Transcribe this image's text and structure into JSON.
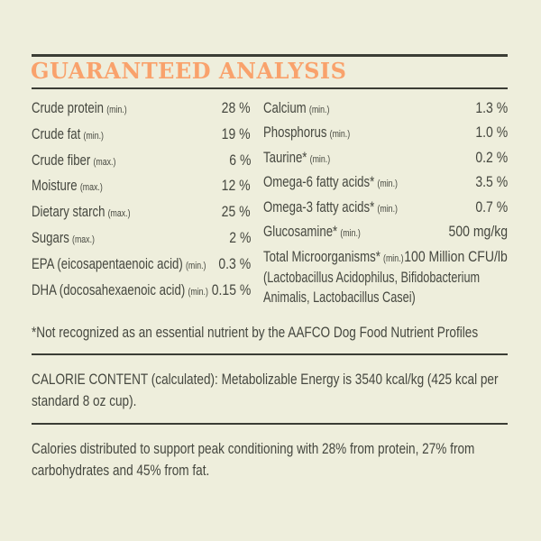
{
  "colors": {
    "background": "#EEEEDC",
    "accent_orange": "#F9A26C",
    "rule": "#3B3D35",
    "text": "#45473F"
  },
  "label": {
    "title": "GUARANTEED ANALYSIS",
    "footnote": "*Not recognized as an essential nutrient by the AAFCO Dog Food Nutrient Profiles",
    "calorie_content": "CALORIE CONTENT (calculated): Metabolizable Energy is 3540 kcal/kg (425 kcal per standard 8 oz cup).",
    "calorie_distribution": "Calories distributed to support peak conditioning with 28% from protein, 27% from carbohydrates and 45% from fat."
  },
  "analysis": {
    "left": [
      {
        "label": "Crude protein",
        "qualifier": "(min.)",
        "value": "28 %"
      },
      {
        "label": "Crude fat",
        "qualifier": "(min.)",
        "value": "19 %"
      },
      {
        "label": "Crude fiber",
        "qualifier": "(max.)",
        "value": "6 %"
      },
      {
        "label": "Moisture",
        "qualifier": "(max.)",
        "value": "12 %"
      },
      {
        "label": "Dietary starch",
        "qualifier": "(max.)",
        "value": "25 %"
      },
      {
        "label": "Sugars",
        "qualifier": "(max.)",
        "value": "2 %"
      },
      {
        "label": "EPA (eicosapentaenoic acid)",
        "qualifier": "(min.)",
        "value": "0.3 %"
      },
      {
        "label": "DHA (docosahexaenoic acid)",
        "qualifier": "(min.)",
        "value": "0.15 %"
      }
    ],
    "right": [
      {
        "label": "Calcium",
        "qualifier": "(min.)",
        "value": "1.3 %"
      },
      {
        "label": "Phosphorus",
        "qualifier": "(min.)",
        "value": "1.0 %"
      },
      {
        "label": "Taurine*",
        "qualifier": "(min.)",
        "value": "0.2 %"
      },
      {
        "label": "Omega-6 fatty acids*",
        "qualifier": "(min.)",
        "value": "3.5 %"
      },
      {
        "label": "Omega-3 fatty acids*",
        "qualifier": "(min.)",
        "value": "0.7 %"
      },
      {
        "label": "Glucosamine*",
        "qualifier": "(min.)",
        "value": "500 mg/kg"
      }
    ],
    "microorganisms": {
      "label": "Total Microorganisms*",
      "qualifier": "(min.)",
      "value": "100 Million CFU/lb",
      "species_note": "(Lactobacillus Acidophilus, Bifidobacterium Animalis, Lactobacillus Casei)"
    }
  }
}
